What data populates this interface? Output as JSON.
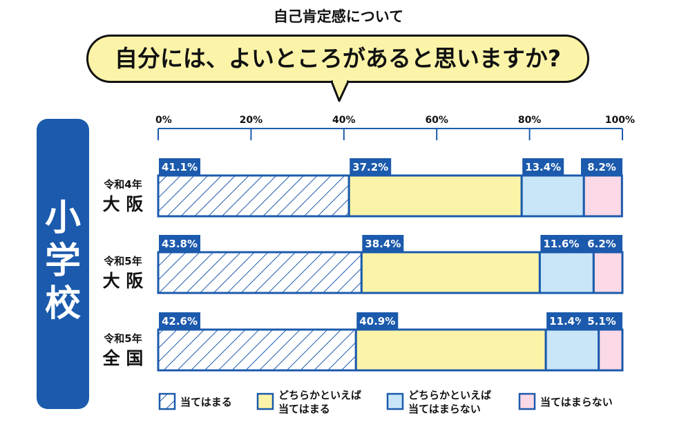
{
  "header": {
    "subtitle": "自己肯定感について",
    "question": "自分には、よいところがあると思いますか?"
  },
  "side_label": [
    "小",
    "学",
    "校"
  ],
  "colors": {
    "navy": "#1b5aac",
    "yellow": "#fbf4a8",
    "light_blue": "#c8e6f8",
    "pink": "#fbd9e6",
    "hatch_bg": "#ffffff"
  },
  "chart_data": {
    "type": "bar",
    "orientation": "horizontal",
    "stacked": true,
    "xlim": [
      0,
      100
    ],
    "x_ticks": [
      "0%",
      "20%",
      "40%",
      "60%",
      "80%",
      "100%"
    ],
    "rows": [
      {
        "label_top": "令和4年",
        "label_bottom": "大 阪",
        "values": [
          41.1,
          37.2,
          13.4,
          8.2
        ],
        "value_labels": [
          "41.1%",
          "37.2%",
          "13.4%",
          "8.2%"
        ]
      },
      {
        "label_top": "令和5年",
        "label_bottom": "大 阪",
        "values": [
          43.8,
          38.4,
          11.6,
          6.2
        ],
        "value_labels": [
          "43.8%",
          "38.4%",
          "11.6%",
          "6.2%"
        ]
      },
      {
        "label_top": "令和5年",
        "label_bottom": "全 国",
        "values": [
          42.6,
          40.9,
          11.4,
          5.1
        ],
        "value_labels": [
          "42.6%",
          "40.9%",
          "11.4%",
          "5.1%"
        ]
      }
    ],
    "legend": [
      {
        "lines": [
          "当てはまる"
        ],
        "style": "hatch"
      },
      {
        "lines": [
          "どちらかといえば",
          "当てはまる"
        ],
        "style": "yellow"
      },
      {
        "lines": [
          "どちらかといえば",
          "当てはまらない"
        ],
        "style": "light_blue"
      },
      {
        "lines": [
          "当てはまらない"
        ],
        "style": "pink"
      }
    ],
    "legend_position": "bottom"
  }
}
